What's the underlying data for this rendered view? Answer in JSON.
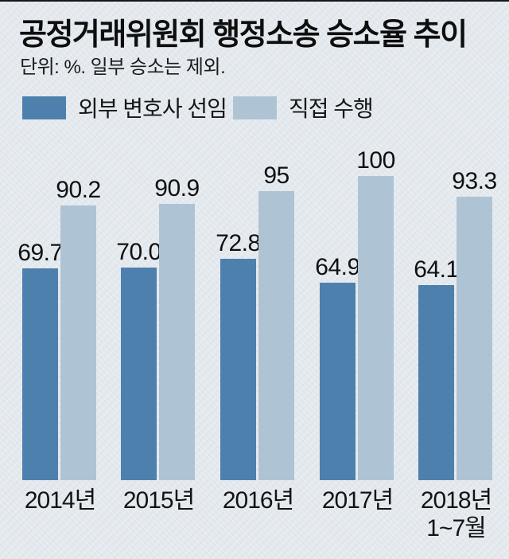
{
  "header": {
    "title": "공정거래위원회 행정소송 승소율 추이",
    "unit_note": "단위: %.  일부 승소는 제외."
  },
  "chart_data": {
    "type": "bar",
    "title": "공정거래위원회 행정소송 승소율 추이",
    "unit_note": "단위: %.  일부 승소는 제외.",
    "categories": [
      "2014년",
      "2015년",
      "2016년",
      "2017년",
      "2018년\n1~7월"
    ],
    "series": [
      {
        "name": "외부 변호사 선임",
        "color": "#4e80ae",
        "values": [
          69.7,
          70.0,
          72.8,
          64.9,
          64.1
        ],
        "value_labels": [
          "69.7",
          "70.0",
          "72.8",
          "64.9",
          "64.1"
        ]
      },
      {
        "name": "직접 수행",
        "color": "#aec4d4",
        "values": [
          90.2,
          90.9,
          95,
          100,
          93.3
        ],
        "value_labels": [
          "90.2",
          "90.9",
          "95",
          "100",
          "93.3"
        ]
      }
    ],
    "ylim": [
      0,
      100
    ],
    "grid": false,
    "legend_position": "top-left",
    "value_labels_shown": true
  },
  "colors": {
    "background": "#e4e9ee",
    "top_rule": "#161616",
    "text": "#111111"
  }
}
